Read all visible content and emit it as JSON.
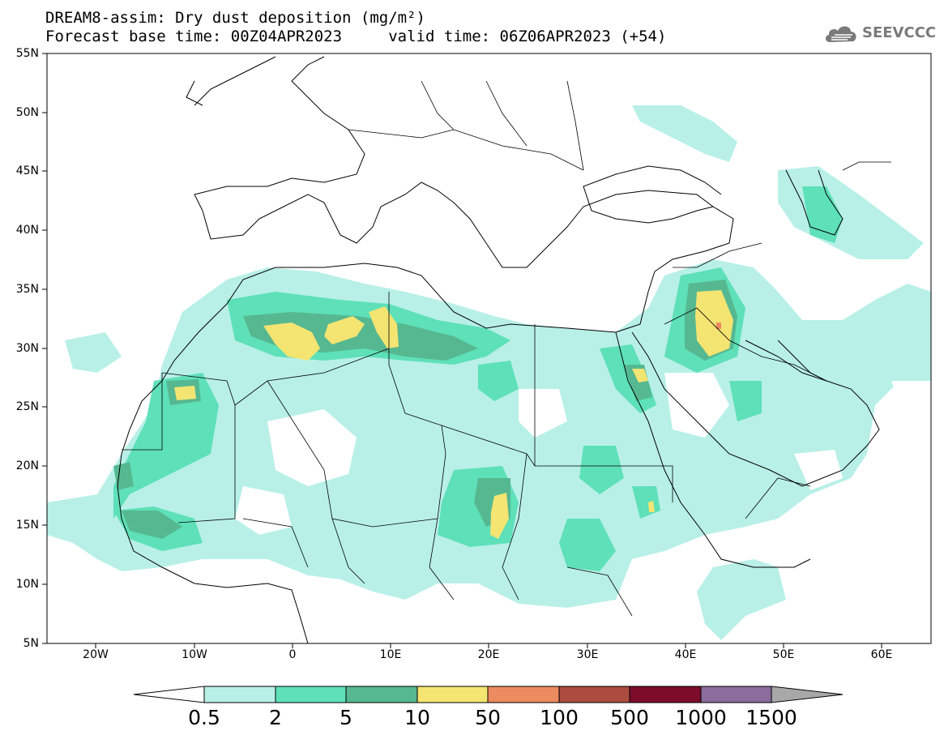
{
  "header": {
    "title_line1": "DREAM8-assim: Dry dust deposition (mg/m²)",
    "title_line2": "Forecast base time: 00Z04APR2023     valid time: 06Z06APR2023 (+54)",
    "logo_text": "SEEVCCC",
    "logo_icon": "cloud-icon"
  },
  "axes": {
    "lat_labels": [
      "55N",
      "50N",
      "45N",
      "40N",
      "35N",
      "30N",
      "25N",
      "20N",
      "15N",
      "10N",
      "5N"
    ],
    "lon_labels": [
      "20W",
      "10W",
      "0",
      "10E",
      "20E",
      "30E",
      "40E",
      "50E",
      "60E"
    ]
  },
  "map": {
    "extent": {
      "lon_min": -25,
      "lon_max": 65,
      "lat_min": 5,
      "lat_max": 55
    },
    "field": "Dry dust deposition",
    "units": "mg/m²"
  },
  "colorbar": {
    "labels": [
      "0.5",
      "2",
      "5",
      "10",
      "50",
      "100",
      "500",
      "1000",
      "1500"
    ],
    "colors": [
      "#b8f0e8",
      "#5ee0b8",
      "#56b890",
      "#f4e472",
      "#ec8a60",
      "#ac4c3e",
      "#7c0c2a",
      "#8c6c9c"
    ],
    "under_color": "#ffffff",
    "over_color": "#a8a8a8"
  }
}
